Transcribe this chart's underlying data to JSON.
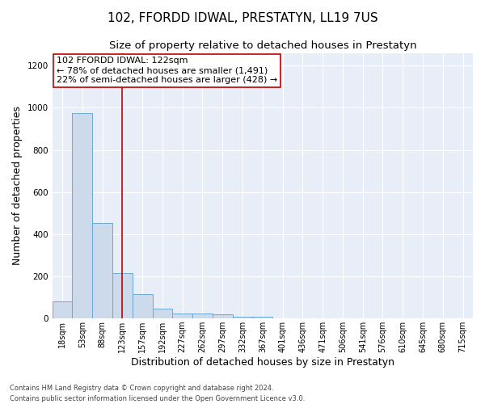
{
  "title": "102, FFORDD IDWAL, PRESTATYN, LL19 7US",
  "subtitle": "Size of property relative to detached houses in Prestatyn",
  "xlabel": "Distribution of detached houses by size in Prestatyn",
  "ylabel": "Number of detached properties",
  "bin_labels": [
    "18sqm",
    "53sqm",
    "88sqm",
    "123sqm",
    "157sqm",
    "192sqm",
    "227sqm",
    "262sqm",
    "297sqm",
    "332sqm",
    "367sqm",
    "401sqm",
    "436sqm",
    "471sqm",
    "506sqm",
    "541sqm",
    "576sqm",
    "610sqm",
    "645sqm",
    "680sqm",
    "715sqm"
  ],
  "bar_heights": [
    80,
    975,
    455,
    215,
    115,
    48,
    22,
    22,
    18,
    10,
    10,
    0,
    0,
    0,
    0,
    0,
    0,
    0,
    0,
    0,
    0
  ],
  "bar_color": "#cddaec",
  "bar_edge_color": "#6aaad4",
  "vline_x": 3.0,
  "vline_color": "#c00000",
  "annotation_text": "102 FFORDD IDWAL: 122sqm\n← 78% of detached houses are smaller (1,491)\n22% of semi-detached houses are larger (428) →",
  "annotation_box_color": "#ffffff",
  "annotation_box_edge": "#c00000",
  "ylim": [
    0,
    1260
  ],
  "yticks": [
    0,
    200,
    400,
    600,
    800,
    1000,
    1200
  ],
  "footnote": "Contains HM Land Registry data © Crown copyright and database right 2024.\nContains public sector information licensed under the Open Government Licence v3.0.",
  "title_fontsize": 11,
  "subtitle_fontsize": 9.5,
  "ylabel_fontsize": 9,
  "xlabel_fontsize": 9,
  "annotation_fontsize": 8,
  "tick_fontsize": 7,
  "footnote_fontsize": 6,
  "bg_color": "#e8eef7"
}
